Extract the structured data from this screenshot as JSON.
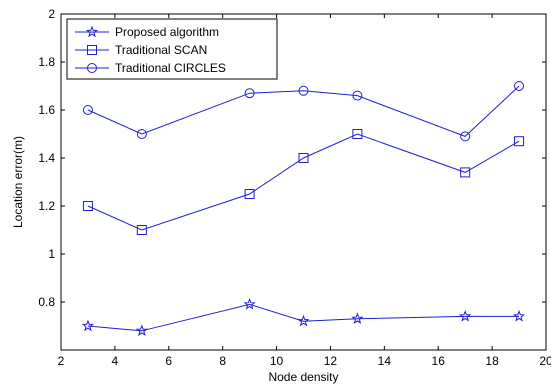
{
  "chart_data": {
    "type": "line",
    "xlabel": "Node density",
    "ylabel": "Location error(m)",
    "xlim": [
      2,
      20
    ],
    "ylim": [
      0.6,
      2
    ],
    "x_ticks": [
      2,
      4,
      6,
      8,
      10,
      12,
      14,
      16,
      18,
      20
    ],
    "y_ticks": [
      0.8,
      1,
      1.2,
      1.4,
      1.6,
      1.8,
      2
    ],
    "x_tick_labels": [
      "2",
      "4",
      "6",
      "8",
      "10",
      "12",
      "14",
      "16",
      "18",
      "20"
    ],
    "y_tick_labels": [
      "0.8",
      "1",
      "1.2",
      "1.4",
      "1.6",
      "1.8",
      "2"
    ],
    "grid": false,
    "legend_position": "top-left",
    "line_color": "#1f1fd0",
    "x": [
      3,
      5,
      9,
      11,
      13,
      17,
      19
    ],
    "series": [
      {
        "name": "Proposed algorithm",
        "marker": "star",
        "values": [
          0.7,
          0.68,
          0.79,
          0.72,
          0.73,
          0.74,
          0.74
        ]
      },
      {
        "name": "Traditional SCAN",
        "marker": "square",
        "values": [
          1.2,
          1.1,
          1.25,
          1.4,
          1.5,
          1.34,
          1.47
        ]
      },
      {
        "name": "Traditional CIRCLES",
        "marker": "circle",
        "values": [
          1.6,
          1.5,
          1.67,
          1.68,
          1.66,
          1.49,
          1.7
        ]
      }
    ]
  }
}
